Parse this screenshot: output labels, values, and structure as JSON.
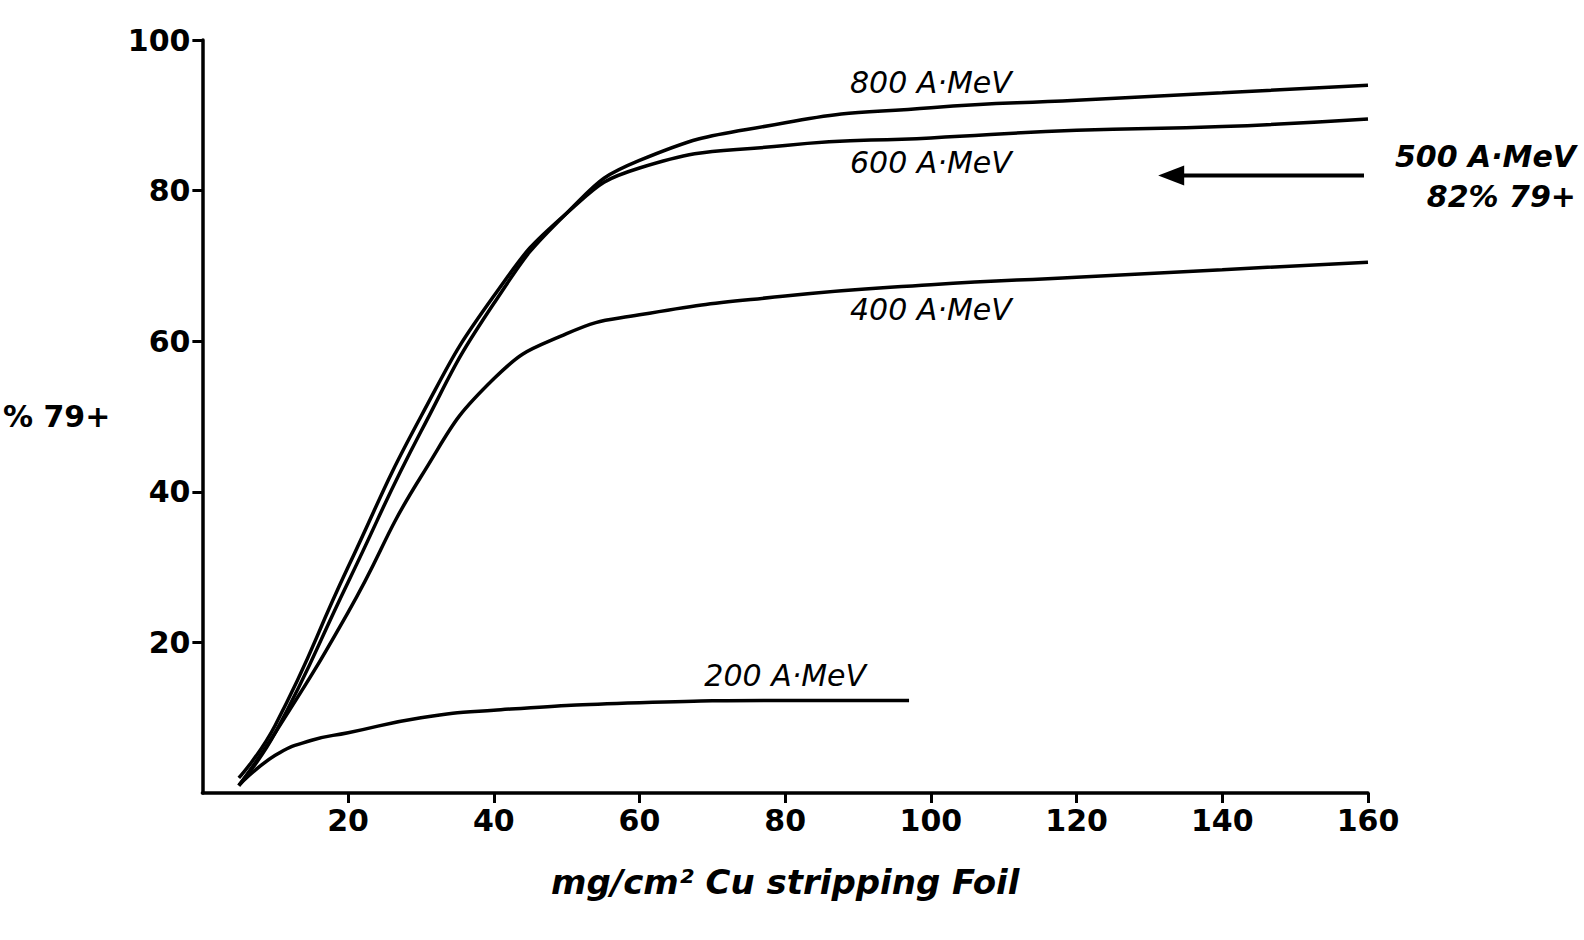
{
  "chart_data": {
    "type": "line",
    "x_label": "mg/cm² Cu stripping Foil",
    "y_label": "% 79+",
    "xlim": [
      0,
      160
    ],
    "xticks": [
      20,
      40,
      60,
      80,
      100,
      120,
      140,
      160
    ],
    "ylim": [
      0,
      100
    ],
    "yticks": [
      20,
      40,
      60,
      80,
      100
    ],
    "grid": false,
    "series": [
      {
        "name": "200 A·MeV",
        "color": "#000000",
        "x": [
          5,
          10,
          15,
          20,
          30,
          40,
          60,
          80,
          97
        ],
        "values": [
          1,
          5,
          7,
          8,
          10,
          11,
          12,
          12.3,
          12.3
        ]
      },
      {
        "name": "400 A·MeV",
        "color": "#000000",
        "x": [
          5,
          10,
          20,
          30,
          40,
          50,
          60,
          80,
          100,
          120,
          140,
          160
        ],
        "values": [
          1,
          8,
          24,
          42,
          55,
          61,
          63.5,
          66,
          67.5,
          68.5,
          69.5,
          70.5
        ]
      },
      {
        "name": "600 A·MeV",
        "color": "#000000",
        "x": [
          5,
          10,
          20,
          30,
          40,
          50,
          60,
          80,
          100,
          120,
          140,
          160
        ],
        "values": [
          2,
          9,
          30,
          50,
          66,
          77,
          83,
          86,
          87,
          88,
          88.5,
          89.5
        ]
      },
      {
        "name": "800 A·MeV",
        "color": "#000000",
        "x": [
          5,
          10,
          20,
          30,
          40,
          50,
          60,
          80,
          100,
          120,
          140,
          160
        ],
        "values": [
          1,
          8,
          28,
          48,
          65,
          77,
          84,
          89,
          91,
          92,
          93,
          94
        ]
      }
    ],
    "annotations": [
      {
        "text": "500 A·MeV",
        "y": 82
      },
      {
        "text": "82% 79+",
        "y": 82
      }
    ]
  }
}
